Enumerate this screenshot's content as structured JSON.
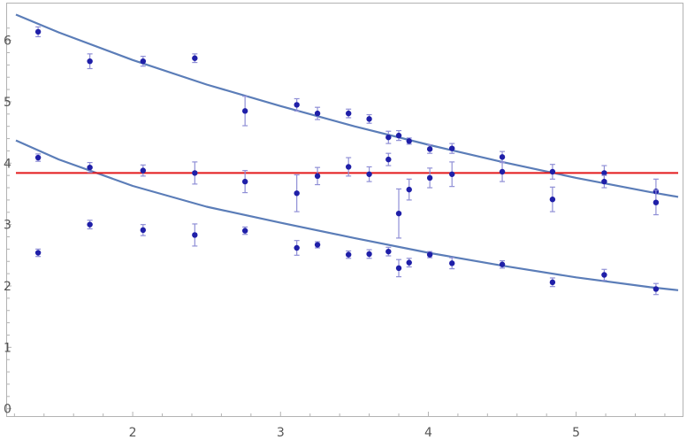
{
  "chart_data": {
    "type": "scatter",
    "title": "",
    "xlabel": "",
    "ylabel": "",
    "xlim": [
      1.15,
      5.72
    ],
    "ylim": [
      -0.12,
      6.6
    ],
    "grid": false,
    "x_ticks": [
      2,
      3,
      4,
      5
    ],
    "x_tick_labels": [
      "2",
      "3",
      "4",
      "5"
    ],
    "y_ticks": [
      0,
      1,
      2,
      3,
      4,
      5,
      6
    ],
    "y_tick_labels": [
      "0",
      "1",
      "2",
      "3",
      "4",
      "5",
      "6"
    ],
    "colors": {
      "points": "#1f1fa8",
      "error_bars": "#8f8fd6",
      "fit_curves": "#5b7db8",
      "reference_line": "#e31a1c",
      "frame": "#b3b3b3"
    },
    "series": [
      {
        "points": [
          {
            "x": 1.36,
            "y": 6.14,
            "err": 0.08
          },
          {
            "x": 1.71,
            "y": 5.66,
            "err": 0.12
          },
          {
            "x": 2.07,
            "y": 5.66,
            "err": 0.08
          },
          {
            "x": 2.42,
            "y": 5.71,
            "err": 0.07
          },
          {
            "x": 2.76,
            "y": 4.85,
            "err": 0.24
          },
          {
            "x": 3.11,
            "y": 4.95,
            "err": 0.1
          },
          {
            "x": 3.25,
            "y": 4.81,
            "err": 0.1
          },
          {
            "x": 3.46,
            "y": 4.81,
            "err": 0.07
          },
          {
            "x": 3.6,
            "y": 4.72,
            "err": 0.07
          },
          {
            "x": 3.73,
            "y": 4.42,
            "err": 0.1
          },
          {
            "x": 3.8,
            "y": 4.45,
            "err": 0.08
          },
          {
            "x": 3.87,
            "y": 4.36,
            "err": 0.05
          },
          {
            "x": 4.01,
            "y": 4.23,
            "err": 0.07
          },
          {
            "x": 4.16,
            "y": 4.24,
            "err": 0.08
          },
          {
            "x": 4.5,
            "y": 4.1,
            "err": 0.09
          },
          {
            "x": 4.84,
            "y": 3.86,
            "err": 0.12
          },
          {
            "x": 5.19,
            "y": 3.84,
            "err": 0.12
          },
          {
            "x": 5.54,
            "y": 3.54,
            "err": 0.2
          }
        ]
      },
      {
        "points": [
          {
            "x": 1.36,
            "y": 4.09,
            "err": 0.06
          },
          {
            "x": 1.71,
            "y": 3.93,
            "err": 0.08
          },
          {
            "x": 2.07,
            "y": 3.88,
            "err": 0.09
          },
          {
            "x": 2.42,
            "y": 3.84,
            "err": 0.18
          },
          {
            "x": 2.76,
            "y": 3.7,
            "err": 0.18
          },
          {
            "x": 3.11,
            "y": 3.51,
            "err": 0.3
          },
          {
            "x": 3.25,
            "y": 3.79,
            "err": 0.14
          },
          {
            "x": 3.46,
            "y": 3.94,
            "err": 0.15
          },
          {
            "x": 3.6,
            "y": 3.82,
            "err": 0.12
          },
          {
            "x": 3.73,
            "y": 4.06,
            "err": 0.1
          },
          {
            "x": 3.8,
            "y": 3.18,
            "err": 0.4
          },
          {
            "x": 3.87,
            "y": 3.57,
            "err": 0.17
          },
          {
            "x": 4.01,
            "y": 3.76,
            "err": 0.16
          },
          {
            "x": 4.16,
            "y": 3.82,
            "err": 0.2
          },
          {
            "x": 4.5,
            "y": 3.86,
            "err": 0.16
          },
          {
            "x": 4.84,
            "y": 3.41,
            "err": 0.2
          },
          {
            "x": 5.19,
            "y": 3.7,
            "err": 0.1
          },
          {
            "x": 5.54,
            "y": 3.36,
            "err": 0.2
          }
        ]
      },
      {
        "points": [
          {
            "x": 1.36,
            "y": 2.54,
            "err": 0.06
          },
          {
            "x": 1.71,
            "y": 3.0,
            "err": 0.07
          },
          {
            "x": 2.07,
            "y": 2.91,
            "err": 0.09
          },
          {
            "x": 2.42,
            "y": 2.83,
            "err": 0.18
          },
          {
            "x": 2.76,
            "y": 2.9,
            "err": 0.06
          },
          {
            "x": 3.11,
            "y": 2.62,
            "err": 0.12
          },
          {
            "x": 3.25,
            "y": 2.67,
            "err": 0.05
          },
          {
            "x": 3.46,
            "y": 2.51,
            "err": 0.06
          },
          {
            "x": 3.6,
            "y": 2.52,
            "err": 0.07
          },
          {
            "x": 3.73,
            "y": 2.56,
            "err": 0.07
          },
          {
            "x": 3.8,
            "y": 2.29,
            "err": 0.14
          },
          {
            "x": 3.87,
            "y": 2.38,
            "err": 0.07
          },
          {
            "x": 4.01,
            "y": 2.51,
            "err": 0.05
          },
          {
            "x": 4.16,
            "y": 2.37,
            "err": 0.09
          },
          {
            "x": 4.5,
            "y": 2.35,
            "err": 0.06
          },
          {
            "x": 4.84,
            "y": 2.06,
            "err": 0.07
          },
          {
            "x": 5.19,
            "y": 2.18,
            "err": 0.09
          },
          {
            "x": 5.54,
            "y": 1.95,
            "err": 0.09
          }
        ]
      }
    ],
    "lines": [
      {
        "kind": "fit-curve",
        "x": [
          1.21,
          1.5,
          2.0,
          2.5,
          3.0,
          3.5,
          4.0,
          4.5,
          5.0,
          5.5,
          5.69
        ],
        "y": [
          6.42,
          6.13,
          5.68,
          5.28,
          4.93,
          4.6,
          4.3,
          4.02,
          3.76,
          3.53,
          3.45
        ]
      },
      {
        "kind": "fit-curve",
        "x": [
          1.21,
          1.5,
          2.0,
          2.5,
          3.0,
          3.5,
          4.0,
          4.5,
          5.0,
          5.5,
          5.69
        ],
        "y": [
          4.37,
          4.06,
          3.63,
          3.29,
          3.03,
          2.78,
          2.54,
          2.33,
          2.14,
          1.98,
          1.93
        ]
      },
      {
        "kind": "constant",
        "x": [
          1.21,
          5.69
        ],
        "y": [
          3.84,
          3.84
        ]
      }
    ]
  }
}
